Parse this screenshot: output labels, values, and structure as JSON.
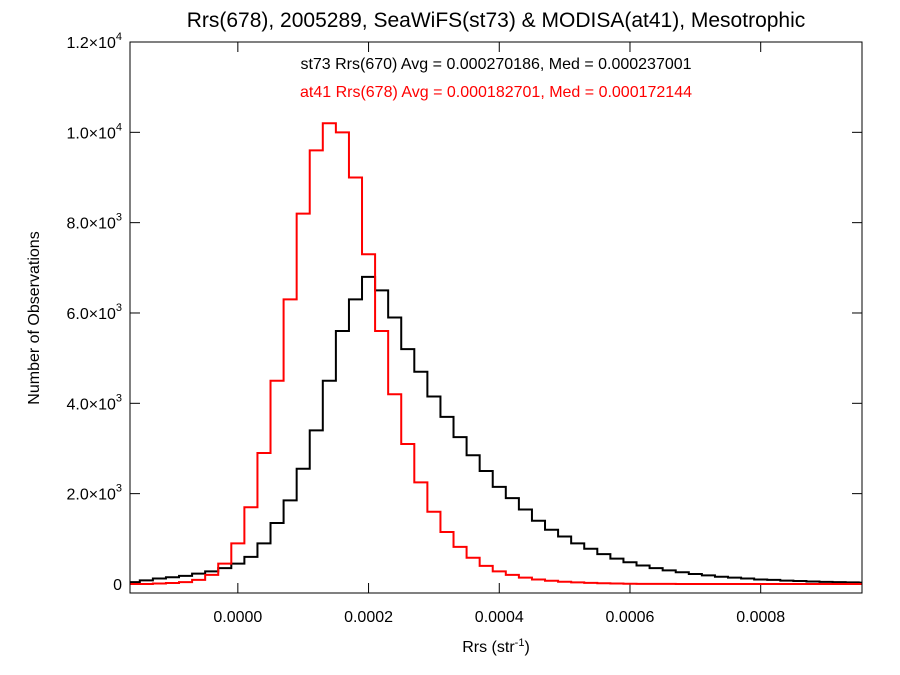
{
  "chart_data": {
    "type": "histogram-step",
    "title": "Rrs(678), 2005289, SeaWiFS(st73) & MODISA(at41), Mesotrophic",
    "xlabel": {
      "base": "Rrs (str",
      "sup": "-1",
      "tail": ")"
    },
    "ylabel": "Number of Observations",
    "xlim": [
      -0.000165,
      0.000955
    ],
    "ylim": [
      -200,
      12000
    ],
    "xticks": [
      {
        "value": 0.0,
        "label": "0.0000"
      },
      {
        "value": 0.0002,
        "label": "0.0002"
      },
      {
        "value": 0.0004,
        "label": "0.0004"
      },
      {
        "value": 0.0006,
        "label": "0.0006"
      },
      {
        "value": 0.0008,
        "label": "0.0008"
      }
    ],
    "yticks": [
      {
        "value": 0,
        "mant": "0",
        "exp": ""
      },
      {
        "value": 2000,
        "mant": "2.0×10",
        "exp": "3"
      },
      {
        "value": 4000,
        "mant": "4.0×10",
        "exp": "3"
      },
      {
        "value": 6000,
        "mant": "6.0×10",
        "exp": "3"
      },
      {
        "value": 8000,
        "mant": "8.0×10",
        "exp": "3"
      },
      {
        "value": 10000,
        "mant": "1.0×10",
        "exp": "4"
      },
      {
        "value": 12000,
        "mant": "1.2×10",
        "exp": "4"
      }
    ],
    "series": [
      {
        "name": "st73",
        "label": "st73 Rrs(670) Avg = 0.000270186, Med = 0.000237001",
        "color": "#000000",
        "x": [
          -0.00016,
          -0.00014,
          -0.00012,
          -0.0001,
          -8e-05,
          -6e-05,
          -4e-05,
          -2e-05,
          0.0,
          2e-05,
          4e-05,
          6e-05,
          8e-05,
          0.0001,
          0.00012,
          0.00014,
          0.00016,
          0.00018,
          0.0002,
          0.00022,
          0.00024,
          0.00026,
          0.00028,
          0.0003,
          0.00032,
          0.00034,
          0.00036,
          0.00038,
          0.0004,
          0.00042,
          0.00044,
          0.00046,
          0.00048,
          0.0005,
          0.00052,
          0.00054,
          0.00056,
          0.00058,
          0.0006,
          0.00062,
          0.00064,
          0.00066,
          0.00068,
          0.0007,
          0.00072,
          0.00074,
          0.00076,
          0.00078,
          0.0008,
          0.00082,
          0.00084,
          0.00086,
          0.00088,
          0.0009,
          0.00092,
          0.00094,
          0.00096
        ],
        "y": [
          40,
          80,
          120,
          150,
          180,
          230,
          280,
          350,
          450,
          600,
          900,
          1350,
          1850,
          2550,
          3400,
          4500,
          5600,
          6300,
          6800,
          6500,
          5900,
          5200,
          4700,
          4150,
          3700,
          3250,
          2850,
          2500,
          2150,
          1900,
          1650,
          1400,
          1200,
          1050,
          900,
          780,
          660,
          560,
          480,
          410,
          350,
          300,
          260,
          220,
          190,
          160,
          140,
          120,
          100,
          90,
          75,
          65,
          55,
          45,
          40,
          35,
          30
        ]
      },
      {
        "name": "at41",
        "label": "at41 Rrs(678) Avg = 0.000182701, Med = 0.000172144",
        "color": "#ff0000",
        "x": [
          -0.00016,
          -0.00014,
          -0.00012,
          -0.0001,
          -8e-05,
          -6e-05,
          -4e-05,
          -2e-05,
          0.0,
          2e-05,
          4e-05,
          6e-05,
          8e-05,
          0.0001,
          0.00012,
          0.00014,
          0.00016,
          0.00018,
          0.0002,
          0.00022,
          0.00024,
          0.00026,
          0.00028,
          0.0003,
          0.00032,
          0.00034,
          0.00036,
          0.00038,
          0.0004,
          0.00042,
          0.00044,
          0.00046,
          0.00048,
          0.0005,
          0.00052,
          0.00054,
          0.00056,
          0.00058,
          0.0006,
          0.00062,
          0.00064,
          0.00066,
          0.00068,
          0.0007,
          0.00072,
          0.00074,
          0.00076,
          0.00078,
          0.0008,
          0.00082,
          0.00084,
          0.00086,
          0.00088,
          0.0009,
          0.00092,
          0.00094,
          0.00096
        ],
        "y": [
          0,
          0,
          10,
          20,
          40,
          90,
          200,
          450,
          900,
          1700,
          2900,
          4500,
          6300,
          8200,
          9600,
          10200,
          10000,
          9000,
          7300,
          5600,
          4200,
          3100,
          2250,
          1600,
          1150,
          820,
          580,
          400,
          280,
          200,
          140,
          100,
          70,
          50,
          35,
          25,
          15,
          10,
          5,
          3,
          2,
          1,
          0,
          0,
          0,
          0,
          0,
          0,
          0,
          0,
          0,
          0,
          0,
          0,
          0,
          0,
          0
        ]
      }
    ]
  }
}
